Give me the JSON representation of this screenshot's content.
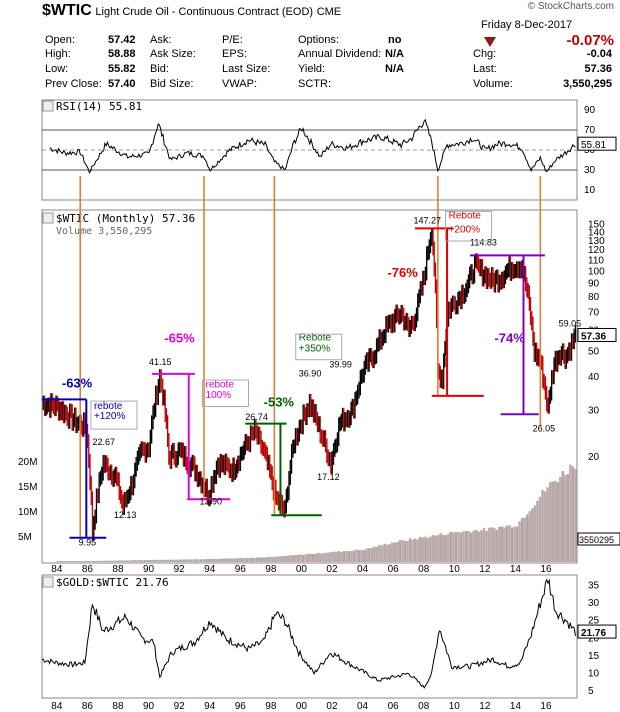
{
  "header": {
    "symbol": "$WTIC",
    "name": "Light Crude Oil - Continuous Contract (EOD)",
    "exchange": "CME",
    "brand": "© StockCharts.com",
    "date": "Friday  8-Dec-2017",
    "change_pct": "-0.07%",
    "rows": [
      {
        "label": "Open:",
        "value": "57.42"
      },
      {
        "label": "High:",
        "value": "58.88"
      },
      {
        "label": "Low:",
        "value": "55.82"
      },
      {
        "label": "Prev Close:",
        "value": "57.40"
      }
    ],
    "col2": [
      "Ask:",
      "Ask Size:",
      "Bid:",
      "Bid Size:"
    ],
    "col3": [
      "P/E:",
      "EPS:",
      "Last Size:",
      "VWAP:"
    ],
    "col4": [
      {
        "label": "Options:",
        "value": "no"
      },
      {
        "label": "Annual Dividend:",
        "value": "N/A"
      },
      {
        "label": "Yield:",
        "value": "N/A"
      },
      {
        "label": "SCTR:",
        "value": ""
      }
    ],
    "col5": [
      {
        "label": "Chg:",
        "value": "-0.04"
      },
      {
        "label": "Last:",
        "value": "57.36"
      },
      {
        "label": "Volume:",
        "value": "3,550,295"
      }
    ]
  },
  "chart_data": [
    {
      "type": "line",
      "title": "RSI(14) 55.81",
      "y_ticks": [
        10,
        30,
        50,
        70,
        90
      ],
      "ylim": [
        0,
        100
      ],
      "reference_lines": [
        30,
        70
      ],
      "last_value": "55.81",
      "x": [
        1983.5,
        1984.5,
        1985.5,
        1986.1,
        1987.2,
        1988.6,
        1990.0,
        1990.6,
        1991.4,
        1992.5,
        1993.6,
        1994.0,
        1995.2,
        1996.5,
        1997.6,
        1998.2,
        1998.9,
        1999.5,
        2000.0,
        2001.2,
        2001.9,
        2003.0,
        2004.0,
        2005.2,
        2006.5,
        2007.2,
        2008.0,
        2008.5,
        2008.9,
        2009.5,
        2010.5,
        2011.2,
        2012.0,
        2012.8,
        2013.5,
        2014.4,
        2015.0,
        2015.6,
        2016.0,
        2016.6,
        2017.3,
        2017.9
      ],
      "values": [
        52,
        47,
        48,
        28,
        56,
        43,
        46,
        77,
        40,
        47,
        44,
        30,
        49,
        60,
        55,
        38,
        30,
        58,
        72,
        43,
        56,
        52,
        59,
        63,
        55,
        62,
        80,
        58,
        30,
        55,
        57,
        62,
        50,
        56,
        57,
        52,
        30,
        42,
        28,
        40,
        48,
        56
      ]
    },
    {
      "type": "line",
      "title": "$WTIC (Monthly) 57.36",
      "subtitle": "Volume 3,550,295",
      "y_scale": "log",
      "y_ticks": [
        20,
        30,
        40,
        50,
        60,
        70,
        80,
        90,
        100,
        110,
        120,
        130,
        140,
        150
      ],
      "x_ticks": [
        "84",
        "86",
        "88",
        "90",
        "92",
        "94",
        "96",
        "98",
        "00",
        "02",
        "04",
        "06",
        "08",
        "10",
        "12",
        "14",
        "16"
      ],
      "xlim": [
        1983,
        2018
      ],
      "last_value": "57.36",
      "x": [
        1983.0,
        1984.0,
        1985.3,
        1985.9,
        1986.3,
        1987.0,
        1987.8,
        1988.3,
        1988.9,
        1989.5,
        1990.0,
        1990.7,
        1990.9,
        1991.3,
        1992.0,
        1993.0,
        1993.9,
        1994.5,
        1995.5,
        1996.3,
        1996.9,
        1997.5,
        1998.3,
        1998.9,
        1999.5,
        2000.5,
        2001.2,
        2001.9,
        2002.5,
        2003.3,
        2004.0,
        2004.8,
        2005.5,
        2006.5,
        2007.0,
        2007.5,
        2008.0,
        2008.5,
        2008.9,
        2009.2,
        2009.6,
        2010.3,
        2010.9,
        2011.3,
        2011.9,
        2012.5,
        2013.0,
        2013.8,
        2014.4,
        2014.8,
        2015.2,
        2015.6,
        2016.1,
        2016.5,
        2016.9,
        2017.3,
        2017.9
      ],
      "values": [
        32,
        31,
        27,
        26,
        10.5,
        19,
        17,
        13,
        16,
        21,
        22,
        40,
        35,
        20,
        21,
        18,
        14.5,
        19,
        18,
        22,
        25,
        21,
        14,
        12.5,
        23,
        32,
        25,
        19,
        27,
        30,
        42,
        50,
        61,
        70,
        60,
        70,
        95,
        145,
        42,
        40,
        72,
        80,
        90,
        105,
        98,
        92,
        95,
        105,
        105,
        80,
        50,
        46,
        30,
        45,
        50,
        48,
        57.36
      ],
      "annotations": [
        {
          "text": "-63%"
        },
        {
          "text": "rebote"
        },
        {
          "text": "+120%"
        },
        {
          "text": "22.67"
        },
        {
          "text": "9.95"
        },
        {
          "text": "12.13"
        },
        {
          "text": "-65%"
        },
        {
          "text": "41.15"
        },
        {
          "text": "rebote"
        },
        {
          "text": "100%"
        },
        {
          "text": "13.90"
        },
        {
          "text": "-53%"
        },
        {
          "text": "26.74"
        },
        {
          "text": "Rebote"
        },
        {
          "text": "+350%"
        },
        {
          "text": "36.90"
        },
        {
          "text": "39.99"
        },
        {
          "text": "17.12"
        },
        {
          "text": "-76%"
        },
        {
          "text": "147.27"
        },
        {
          "text": "Rebote"
        },
        {
          "text": "+200%"
        },
        {
          "text": "114.83"
        },
        {
          "text": "-74%"
        },
        {
          "text": "26.05"
        },
        {
          "text": "59.05"
        }
      ]
    },
    {
      "type": "bar",
      "title": "Volume",
      "y_ticks": [
        "5M",
        "10M",
        "15M",
        "20M"
      ],
      "last_value": "3550295",
      "x": [
        1984,
        1986,
        1988,
        1990,
        1992,
        1994,
        1996,
        1998,
        2000,
        2002,
        2004,
        2006,
        2008,
        2010,
        2012,
        2014,
        2016,
        2017.9
      ],
      "values": [
        0.1,
        0.2,
        0.3,
        0.4,
        0.5,
        0.6,
        0.8,
        1.0,
        1.5,
        2.0,
        2.5,
        4.0,
        5.0,
        6.0,
        6.5,
        7.5,
        15.0,
        20.0
      ]
    },
    {
      "type": "line",
      "title": "$GOLD:$WTIC 21.76",
      "y_ticks": [
        5,
        10,
        15,
        20,
        25,
        30,
        35
      ],
      "last_value": "21.76",
      "x": [
        1983.0,
        1984.0,
        1985.0,
        1985.8,
        1986.3,
        1987.0,
        1988.5,
        1989.5,
        1990.3,
        1990.7,
        1991.5,
        1993.0,
        1994.0,
        1995.0,
        1996.5,
        1997.5,
        1998.3,
        1998.9,
        1999.8,
        2000.8,
        2001.9,
        2003.0,
        2005.0,
        2007.0,
        2008.0,
        2008.5,
        2009.0,
        2009.8,
        2011.0,
        2012.5,
        2013.5,
        2014.3,
        2015.0,
        2015.6,
        2016.1,
        2016.6,
        2017.3,
        2017.9
      ],
      "values": [
        14,
        13,
        12.5,
        13,
        30,
        22,
        26,
        20,
        19,
        9,
        16,
        19,
        25,
        20,
        17,
        19,
        27,
        25,
        16,
        10,
        16,
        13,
        8,
        10,
        6,
        10,
        23,
        12,
        12,
        14,
        12,
        13,
        21,
        30,
        37,
        28,
        25,
        21.76
      ]
    }
  ]
}
